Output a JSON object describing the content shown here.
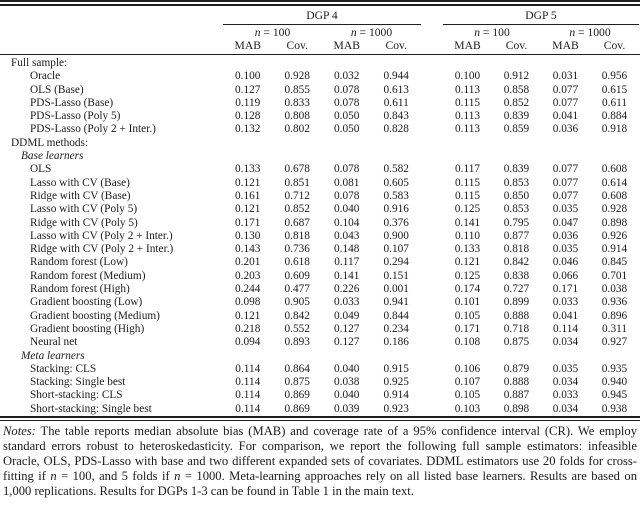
{
  "table": {
    "col_groups": [
      {
        "label": "DGP 4",
        "n100": "n = 100",
        "n1000": "n = 1000"
      },
      {
        "label": "DGP 5",
        "n100": "n = 100",
        "n1000": "n = 1000"
      }
    ],
    "metric_headers": [
      "MAB",
      "Cov.",
      "MAB",
      "Cov.",
      "MAB",
      "Cov.",
      "MAB",
      "Cov."
    ],
    "rows": [
      {
        "type": "section",
        "label": "Full sample:",
        "values": []
      },
      {
        "type": "item",
        "label": "Oracle",
        "values": [
          "0.100",
          "0.928",
          "0.032",
          "0.944",
          "0.100",
          "0.912",
          "0.031",
          "0.956"
        ]
      },
      {
        "type": "item",
        "label": "OLS (Base)",
        "values": [
          "0.127",
          "0.855",
          "0.078",
          "0.613",
          "0.113",
          "0.858",
          "0.077",
          "0.615"
        ]
      },
      {
        "type": "item",
        "label": "PDS-Lasso (Base)",
        "values": [
          "0.119",
          "0.833",
          "0.078",
          "0.611",
          "0.115",
          "0.852",
          "0.077",
          "0.611"
        ]
      },
      {
        "type": "item",
        "label": "PDS-Lasso (Poly 5)",
        "values": [
          "0.128",
          "0.808",
          "0.050",
          "0.843",
          "0.113",
          "0.839",
          "0.041",
          "0.884"
        ]
      },
      {
        "type": "item",
        "label": "PDS-Lasso (Poly 2 + Inter.)",
        "values": [
          "0.132",
          "0.802",
          "0.050",
          "0.828",
          "0.113",
          "0.859",
          "0.036",
          "0.918"
        ]
      },
      {
        "type": "section",
        "label": "DDML methods:",
        "values": []
      },
      {
        "type": "subsection",
        "label": "Base learners",
        "values": []
      },
      {
        "type": "item",
        "label": "OLS",
        "values": [
          "0.133",
          "0.678",
          "0.078",
          "0.582",
          "0.117",
          "0.839",
          "0.077",
          "0.608"
        ]
      },
      {
        "type": "item",
        "label": "Lasso with CV (Base)",
        "values": [
          "0.121",
          "0.851",
          "0.081",
          "0.605",
          "0.115",
          "0.853",
          "0.077",
          "0.614"
        ]
      },
      {
        "type": "item",
        "label": "Ridge with CV (Base)",
        "values": [
          "0.161",
          "0.712",
          "0.078",
          "0.583",
          "0.115",
          "0.850",
          "0.077",
          "0.608"
        ]
      },
      {
        "type": "item",
        "label": "Lasso with CV (Poly 5)",
        "values": [
          "0.121",
          "0.852",
          "0.040",
          "0.916",
          "0.125",
          "0.853",
          "0.035",
          "0.928"
        ]
      },
      {
        "type": "item",
        "label": "Ridge with CV (Poly 5)",
        "values": [
          "0.171",
          "0.687",
          "0.104",
          "0.376",
          "0.141",
          "0.795",
          "0.047",
          "0.898"
        ]
      },
      {
        "type": "item",
        "label": "Lasso with CV (Poly 2 + Inter.)",
        "values": [
          "0.130",
          "0.818",
          "0.043",
          "0.900",
          "0.110",
          "0.877",
          "0.036",
          "0.926"
        ]
      },
      {
        "type": "item",
        "label": "Ridge with CV (Poly 2 + Inter.)",
        "values": [
          "0.143",
          "0.736",
          "0.148",
          "0.107",
          "0.133",
          "0.818",
          "0.035",
          "0.914"
        ]
      },
      {
        "type": "item",
        "label": "Random forest (Low)",
        "values": [
          "0.201",
          "0.618",
          "0.117",
          "0.294",
          "0.121",
          "0.842",
          "0.046",
          "0.845"
        ]
      },
      {
        "type": "item",
        "label": "Random forest (Medium)",
        "values": [
          "0.203",
          "0.609",
          "0.141",
          "0.151",
          "0.125",
          "0.838",
          "0.066",
          "0.701"
        ]
      },
      {
        "type": "item",
        "label": "Random forest (High)",
        "values": [
          "0.244",
          "0.477",
          "0.226",
          "0.001",
          "0.174",
          "0.727",
          "0.171",
          "0.038"
        ]
      },
      {
        "type": "item",
        "label": "Gradient boosting (Low)",
        "values": [
          "0.098",
          "0.905",
          "0.033",
          "0.941",
          "0.101",
          "0.899",
          "0.033",
          "0.936"
        ]
      },
      {
        "type": "item",
        "label": "Gradient boosting (Medium)",
        "values": [
          "0.121",
          "0.842",
          "0.049",
          "0.844",
          "0.105",
          "0.888",
          "0.041",
          "0.896"
        ]
      },
      {
        "type": "item",
        "label": "Gradient boosting (High)",
        "values": [
          "0.218",
          "0.552",
          "0.127",
          "0.234",
          "0.171",
          "0.718",
          "0.114",
          "0.311"
        ]
      },
      {
        "type": "item",
        "label": "Neural net",
        "values": [
          "0.094",
          "0.893",
          "0.127",
          "0.186",
          "0.108",
          "0.875",
          "0.034",
          "0.927"
        ]
      },
      {
        "type": "subsection",
        "label": "Meta learners",
        "values": []
      },
      {
        "type": "item",
        "label": "Stacking: CLS",
        "values": [
          "0.114",
          "0.864",
          "0.040",
          "0.915",
          "0.106",
          "0.879",
          "0.035",
          "0.935"
        ]
      },
      {
        "type": "item",
        "label": "Stacking: Single best",
        "values": [
          "0.114",
          "0.875",
          "0.038",
          "0.925",
          "0.107",
          "0.888",
          "0.034",
          "0.940"
        ]
      },
      {
        "type": "item",
        "label": "Short-stacking: CLS",
        "values": [
          "0.114",
          "0.869",
          "0.040",
          "0.914",
          "0.105",
          "0.887",
          "0.033",
          "0.945"
        ]
      },
      {
        "type": "item",
        "label": "Short-stacking: Single best",
        "values": [
          "0.114",
          "0.869",
          "0.039",
          "0.923",
          "0.103",
          "0.898",
          "0.034",
          "0.938"
        ]
      }
    ]
  },
  "notes": {
    "lead": "Notes:",
    "body_parts": [
      {
        "text": "  The table reports median absolute bias (MAB) and coverage rate of a 95% confidence interval (CR). We employ standard errors robust to heteroskedasticity.  For comparison, we report the following full sample estimators: infeasible Oracle, OLS, PDS-Lasso with base and two different expanded sets of covariates.  DDML estimators use 20 folds for cross-fitting if ",
        "italic": false
      },
      {
        "text": "n",
        "italic": true
      },
      {
        "text": " = 100, and 5 folds if ",
        "italic": false
      },
      {
        "text": "n",
        "italic": true
      },
      {
        "text": " = 1000.  Meta-learning approaches rely on all listed base learners.  Results are based on 1,000 replications.  Results for DGPs 1-3 can be found in Table 1 in the main text.",
        "italic": false
      }
    ]
  }
}
